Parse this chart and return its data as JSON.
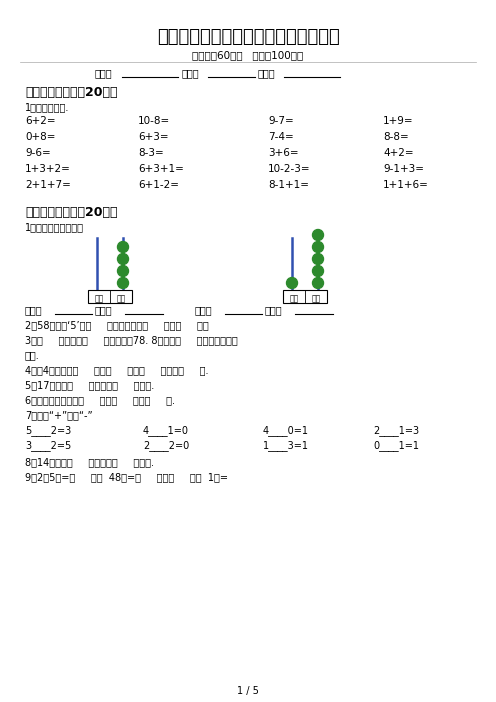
{
  "title": "一年级数学下册期中考试题《含答案》",
  "title2": "一年级数学下册期中考试题【含答案】",
  "subtitle": "（时间：60分钟   分数：100分）",
  "section1_title": "一、计算小能手（20分）",
  "section1_sub": "1、直接写得数.",
  "math_rows": [
    [
      "6+2=",
      "10-8=",
      "9-7=",
      "1+9="
    ],
    [
      "0+8=",
      "6+3=",
      "7-4=",
      "8-8="
    ],
    [
      "9-6=",
      "8-3=",
      "3+6=",
      "4+2="
    ],
    [
      "1+3+2=",
      "6+3+1=",
      "10-2-3=",
      "9-1+3="
    ],
    [
      "2+1+7=",
      "6+1-2=",
      "8-1+1=",
      "1+1+6="
    ]
  ],
  "section2_title": "二、填空题。（共20分）",
  "section2_sub": "1、写一写，读一读。",
  "fill_items": [
    "2、58里面的‘5’在（     ）位上，表示（     ）个（     ）。",
    "3、（     ）个十和（     ）个一组成78. 8个十和（     ）个十合起来是",
    "一百.",
    "4、比4小的数有（     ），（     ），（     ）还有（     ）.",
    "5、17里面有（     ）个十和（     ）个一.",
    "6、人民币的单位有（     ），（     ），（     ）.",
    "7、填上“+”或者“-”"
  ],
  "fill_row7a": [
    "5____2=3",
    "4____1=0",
    "4____0=1",
    "2____1=3"
  ],
  "fill_row7b": [
    "3____2=5",
    "2____2=0",
    "1____3=1",
    "0____1=1"
  ],
  "fill_item8": "8、14里面有（     ）个十和（     ）个一.",
  "fill_item9": "9、2元5角=（     ）角  48角=（     ）元（     ）角  1元=",
  "page_info": "1 / 5",
  "bg_color": "#ffffff",
  "text_color": "#000000",
  "title_fontsize": 13,
  "subtitle_fontsize": 7.5,
  "body_fontsize": 7,
  "section_fontsize": 9,
  "abacus_bead_color": "#2d8a2d",
  "abacus_rod_color": "#3050b0"
}
